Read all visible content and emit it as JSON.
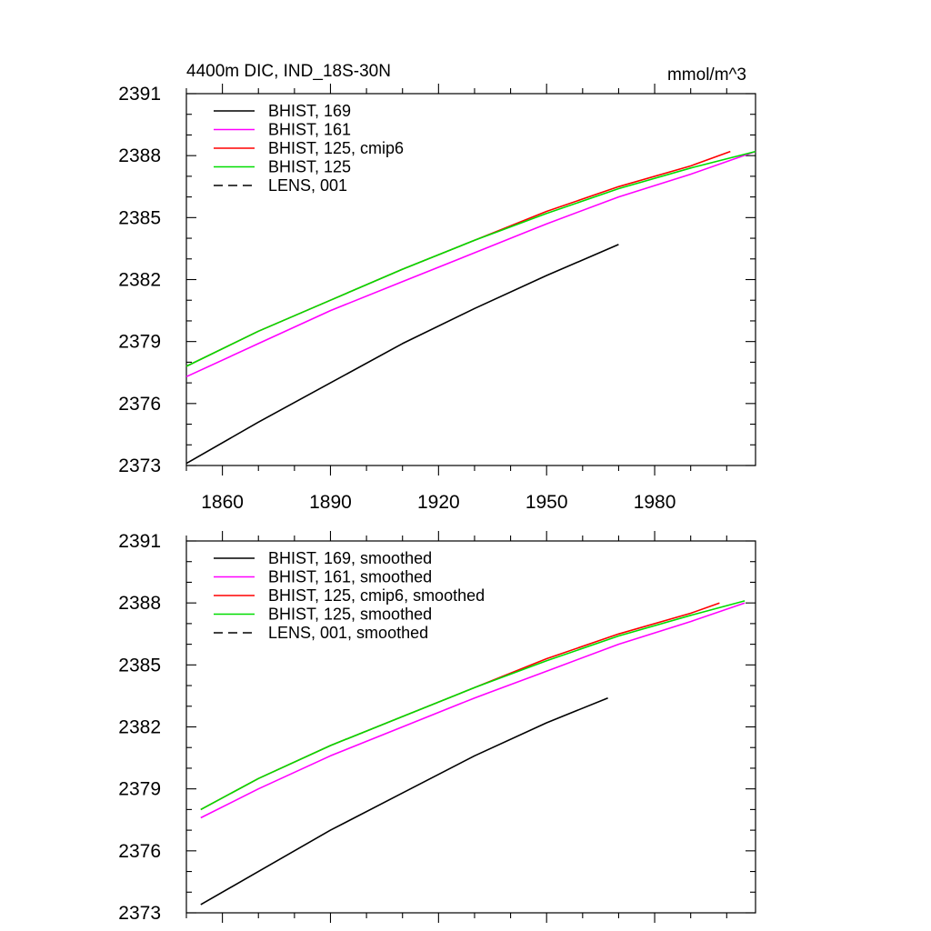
{
  "chart_data": [
    {
      "type": "line",
      "title": "4400m DIC, IND_18S-30N",
      "units": "mmol/m^3",
      "xlim": [
        1850,
        2008
      ],
      "ylim": [
        2373,
        2391
      ],
      "xticks": [
        1860,
        1890,
        1920,
        1950,
        1980
      ],
      "xtick_labels": [
        "1860",
        "1890",
        "1920",
        "1950",
        "1980"
      ],
      "yticks": [
        2373,
        2376,
        2379,
        2382,
        2385,
        2388,
        2391
      ],
      "ytick_labels": [
        "2373",
        "2376",
        "2379",
        "2382",
        "2385",
        "2388",
        "2391"
      ],
      "legend_position": "top-left",
      "series": [
        {
          "name": "BHIST, 169",
          "color": "#000000",
          "dash": "solid",
          "x": [
            1850,
            1870,
            1890,
            1910,
            1930,
            1950,
            1970
          ],
          "y": [
            2373.1,
            2375.1,
            2377.0,
            2378.9,
            2380.6,
            2382.2,
            2383.7
          ]
        },
        {
          "name": "BHIST, 161",
          "color": "#ff00ff",
          "dash": "solid",
          "x": [
            1850,
            1870,
            1890,
            1910,
            1930,
            1950,
            1970,
            1990,
            2008
          ],
          "y": [
            2377.3,
            2378.9,
            2380.5,
            2381.9,
            2383.3,
            2384.7,
            2386.0,
            2387.1,
            2388.2
          ]
        },
        {
          "name": "BHIST, 125, cmip6",
          "color": "#ff0000",
          "dash": "solid",
          "x": [
            1850,
            1870,
            1890,
            1910,
            1930,
            1950,
            1970,
            1990,
            2001
          ],
          "y": [
            2377.8,
            2379.5,
            2381.0,
            2382.5,
            2383.9,
            2385.3,
            2386.5,
            2387.5,
            2388.2
          ]
        },
        {
          "name": "BHIST, 125",
          "color": "#00dd00",
          "dash": "solid",
          "x": [
            1850,
            1870,
            1890,
            1910,
            1930,
            1950,
            1970,
            1990,
            2008
          ],
          "y": [
            2377.8,
            2379.5,
            2381.0,
            2382.5,
            2383.9,
            2385.2,
            2386.4,
            2387.4,
            2388.2
          ]
        },
        {
          "name": "LENS, 001",
          "color": "#000000",
          "dash": "dashed",
          "x": [],
          "y": []
        }
      ]
    },
    {
      "type": "line",
      "title": "",
      "xlim": [
        1850,
        2008
      ],
      "ylim": [
        2373,
        2391
      ],
      "xticks": [
        1860,
        1890,
        1920,
        1950,
        1980
      ],
      "xtick_labels": [],
      "yticks": [
        2373,
        2376,
        2379,
        2382,
        2385,
        2388,
        2391
      ],
      "ytick_labels": [
        "2373",
        "2376",
        "2379",
        "2382",
        "2385",
        "2388",
        "2391"
      ],
      "legend_position": "top-left",
      "series": [
        {
          "name": "BHIST, 169, smoothed",
          "color": "#000000",
          "dash": "solid",
          "x": [
            1854,
            1870,
            1890,
            1910,
            1930,
            1950,
            1967
          ],
          "y": [
            2373.4,
            2375.0,
            2377.0,
            2378.8,
            2380.6,
            2382.2,
            2383.4
          ]
        },
        {
          "name": "BHIST, 161, smoothed",
          "color": "#ff00ff",
          "dash": "solid",
          "x": [
            1854,
            1870,
            1890,
            1910,
            1930,
            1950,
            1970,
            1990,
            2005
          ],
          "y": [
            2377.6,
            2379.0,
            2380.6,
            2382.0,
            2383.4,
            2384.7,
            2386.0,
            2387.1,
            2388.0
          ]
        },
        {
          "name": "BHIST, 125, cmip6, smoothed",
          "color": "#ff0000",
          "dash": "solid",
          "x": [
            1854,
            1870,
            1890,
            1910,
            1930,
            1950,
            1970,
            1990,
            1998
          ],
          "y": [
            2378.0,
            2379.5,
            2381.1,
            2382.5,
            2383.9,
            2385.3,
            2386.5,
            2387.5,
            2388.0
          ]
        },
        {
          "name": "BHIST, 125, smoothed",
          "color": "#00dd00",
          "dash": "solid",
          "x": [
            1854,
            1870,
            1890,
            1910,
            1930,
            1950,
            1970,
            1990,
            2005
          ],
          "y": [
            2378.0,
            2379.5,
            2381.1,
            2382.5,
            2383.9,
            2385.2,
            2386.4,
            2387.4,
            2388.1
          ]
        },
        {
          "name": "LENS, 001, smoothed",
          "color": "#000000",
          "dash": "dashed",
          "x": [],
          "y": []
        }
      ]
    }
  ]
}
